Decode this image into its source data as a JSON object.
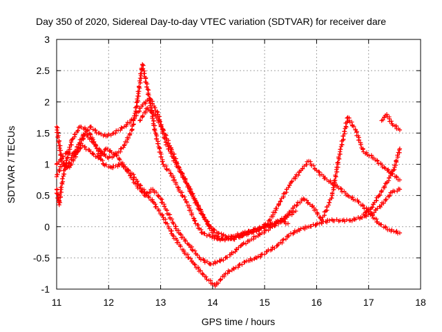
{
  "chart_data": {
    "type": "scatter",
    "title": "Day 350 of 2020, Sidereal Day-to-day VTEC variation (SDTVAR) for receiver dare",
    "xlabel": "GPS time / hours",
    "ylabel": "SDTVAR / TECUs",
    "xlim": [
      11,
      18
    ],
    "ylim": [
      -1,
      3
    ],
    "xticks": [
      "11",
      "12",
      "13",
      "14",
      "15",
      "16",
      "17",
      "18"
    ],
    "yticks": [
      "-1",
      "-0.5",
      "0",
      "0.5",
      "1",
      "1.5",
      "2",
      "2.5",
      "3"
    ],
    "grid": true,
    "marker": "+",
    "color": "#ff0000",
    "series": [
      {
        "name": "trace-1",
        "x": [
          11.0,
          11.1,
          11.2,
          11.35,
          11.5,
          11.65,
          11.8,
          11.95,
          12.1,
          12.3,
          12.5,
          12.65,
          12.8,
          12.95,
          13.1,
          13.3,
          13.5,
          13.7,
          13.9,
          14.05,
          14.2,
          14.4,
          14.6,
          14.8,
          15.0,
          15.2,
          15.4,
          15.6
        ],
        "y": [
          1.6,
          1.05,
          0.95,
          1.2,
          1.45,
          1.6,
          1.5,
          1.45,
          1.5,
          1.6,
          1.75,
          1.95,
          2.05,
          1.8,
          1.35,
          1.0,
          0.7,
          0.35,
          0.05,
          -0.15,
          -0.2,
          -0.15,
          -0.1,
          -0.05,
          0.0,
          0.05,
          0.15,
          0.25
        ]
      },
      {
        "name": "trace-2",
        "x": [
          11.0,
          11.05,
          11.1,
          11.2,
          11.3,
          11.45,
          11.6,
          11.75,
          11.9,
          12.05,
          12.25,
          12.45,
          12.65,
          12.85,
          13.05,
          13.25,
          13.45,
          13.65,
          13.85,
          14.05,
          14.25,
          14.45,
          14.65,
          14.85,
          15.05,
          15.25,
          15.45,
          15.65,
          15.85,
          16.05,
          16.25,
          16.45,
          16.65,
          16.85,
          17.05,
          17.25,
          17.45,
          17.6
        ],
        "y": [
          0.6,
          0.35,
          0.7,
          1.1,
          1.4,
          1.6,
          1.55,
          1.3,
          1.0,
          0.95,
          1.0,
          0.85,
          0.6,
          0.4,
          0.15,
          -0.15,
          -0.4,
          -0.6,
          -0.8,
          -0.95,
          -0.75,
          -0.65,
          -0.55,
          -0.5,
          -0.4,
          -0.3,
          -0.15,
          -0.05,
          0.0,
          0.05,
          0.1,
          0.1,
          0.1,
          0.15,
          0.2,
          0.35,
          0.55,
          0.6
        ]
      },
      {
        "name": "trace-3",
        "x": [
          11.0,
          11.1,
          11.25,
          11.4,
          11.55,
          11.7,
          11.85,
          12.0,
          12.15,
          12.3,
          12.45,
          12.55,
          12.65,
          12.75,
          12.9,
          13.05,
          13.2,
          13.35,
          13.5,
          13.65,
          13.8,
          13.95,
          14.1,
          14.3,
          14.5,
          14.7,
          14.9,
          15.1,
          15.3,
          15.5,
          15.7,
          15.85,
          16.0,
          16.2,
          16.4,
          16.6,
          16.8,
          17.0,
          17.2,
          17.4,
          17.6
        ],
        "y": [
          0.8,
          1.0,
          0.95,
          1.2,
          1.5,
          1.35,
          1.2,
          1.1,
          1.15,
          1.3,
          1.55,
          2.0,
          2.6,
          2.2,
          1.5,
          1.0,
          0.85,
          0.6,
          0.4,
          0.1,
          -0.1,
          -0.15,
          -0.2,
          -0.2,
          -0.15,
          -0.1,
          -0.05,
          0.1,
          0.4,
          0.7,
          0.9,
          1.05,
          0.9,
          0.75,
          0.65,
          0.5,
          0.4,
          0.25,
          0.05,
          -0.05,
          -0.1
        ]
      },
      {
        "name": "trace-4",
        "x": [
          11.0,
          11.1,
          11.2,
          11.35,
          11.5,
          11.65,
          11.8,
          11.95,
          12.15,
          12.35,
          12.55,
          12.7,
          12.85,
          13.0,
          13.15,
          13.35,
          13.55,
          13.75,
          13.95,
          14.15,
          14.35,
          14.55,
          14.75,
          14.95,
          15.15,
          15.35,
          15.55,
          15.75,
          15.95,
          16.1,
          16.3,
          16.45,
          16.6,
          16.75,
          16.9,
          17.1,
          17.3,
          17.45,
          17.6
        ],
        "y": [
          1.0,
          1.1,
          1.2,
          1.15,
          1.3,
          1.2,
          1.1,
          1.25,
          1.15,
          0.9,
          0.65,
          0.5,
          0.6,
          0.45,
          0.2,
          -0.1,
          -0.3,
          -0.5,
          -0.6,
          -0.55,
          -0.45,
          -0.3,
          -0.2,
          -0.1,
          0.0,
          0.1,
          0.3,
          0.45,
          0.3,
          0.1,
          0.5,
          1.2,
          1.75,
          1.55,
          1.2,
          1.1,
          0.95,
          0.85,
          0.75
        ]
      },
      {
        "name": "trace-5",
        "x": [
          12.6,
          12.75,
          12.9,
          13.05,
          13.2,
          13.35,
          13.5,
          13.65,
          13.8,
          13.95,
          14.1,
          14.25,
          14.4,
          14.55,
          14.7,
          14.85,
          15.0,
          15.15,
          15.3,
          15.45
        ],
        "y": [
          1.7,
          1.9,
          1.8,
          1.55,
          1.25,
          0.95,
          0.7,
          0.45,
          0.2,
          0.0,
          -0.1,
          -0.15,
          -0.2,
          -0.15,
          -0.1,
          -0.05,
          0.0,
          0.05,
          0.1,
          0.05
        ]
      },
      {
        "name": "trace-6",
        "x": [
          17.25,
          17.35,
          17.45,
          17.6
        ],
        "y": [
          1.7,
          1.8,
          1.65,
          1.55
        ]
      },
      {
        "name": "trace-7",
        "x": [
          16.9,
          17.05,
          17.2,
          17.35,
          17.5,
          17.6
        ],
        "y": [
          0.2,
          0.3,
          0.5,
          0.7,
          0.95,
          1.25
        ]
      }
    ]
  }
}
